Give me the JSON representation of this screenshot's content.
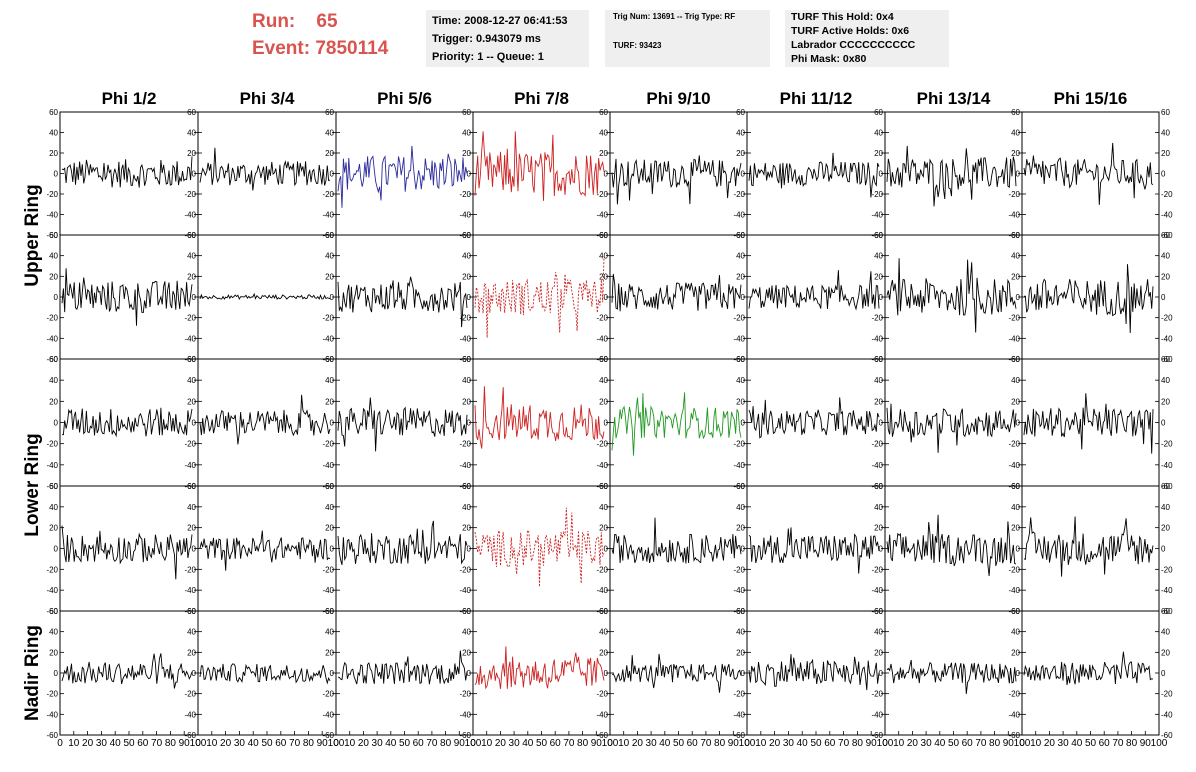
{
  "header": {
    "run_label": "Run:",
    "run_value": "65",
    "event_label": "Event:",
    "event_value": "7850114"
  },
  "info_box_1": {
    "time": "Time: 2008-12-27 06:41:53",
    "trigger": "Trigger: 0.943079 ms",
    "priority": "Priority: 1 -- Queue: 1"
  },
  "info_box_2": {
    "trig": "Trig Num: 13691 -- Trig Type: RF",
    "turf": "TURF: 93423"
  },
  "info_box_3": {
    "hold": "TURF This Hold: 0x4",
    "active": "TURF Active Holds: 0x6",
    "labrador": "Labrador CCCCCCCCCC",
    "phimask": "Phi Mask: 0x80"
  },
  "colors": {
    "default": "#000000",
    "blue": "#2b2b9e",
    "red": "#cc2222",
    "green": "#229922"
  },
  "chart_data": {
    "type": "line",
    "columns": [
      "Phi 1/2",
      "Phi 3/4",
      "Phi 5/6",
      "Phi 7/8",
      "Phi 9/10",
      "Phi 11/12",
      "Phi 13/14",
      "Phi 15/16"
    ],
    "ring_labels": [
      "Upper Ring",
      "Lower Ring",
      "Nadir Ring"
    ],
    "ring_spans": [
      [
        0,
        1
      ],
      [
        2,
        3
      ],
      [
        4,
        4
      ]
    ],
    "ylim": [
      -60,
      60
    ],
    "yticks": [
      60,
      40,
      20,
      0,
      -20,
      -40,
      -60
    ],
    "xlim": [
      0,
      100
    ],
    "xticks": [
      "0",
      "10",
      "20",
      "30",
      "40",
      "50",
      "60",
      "70",
      "80",
      "90",
      "100"
    ],
    "xticks_last": [
      "0",
      "10",
      "20",
      "30",
      "40",
      "50",
      "60",
      "70",
      "80",
      "90",
      "100"
    ],
    "panels": [
      [
        {
          "amp": 14,
          "color": "default"
        },
        {
          "amp": 12,
          "color": "default"
        },
        {
          "amp": 18,
          "color": "blue"
        },
        {
          "amp": 22,
          "color": "red"
        },
        {
          "amp": 14,
          "color": "default"
        },
        {
          "amp": 12,
          "color": "default"
        },
        {
          "amp": 16,
          "color": "default"
        },
        {
          "amp": 14,
          "color": "default"
        }
      ],
      [
        {
          "amp": 16,
          "color": "default"
        },
        {
          "amp": 2,
          "color": "default"
        },
        {
          "amp": 15,
          "color": "default"
        },
        {
          "amp": 18,
          "color": "red",
          "dashed": true
        },
        {
          "amp": 14,
          "color": "default"
        },
        {
          "amp": 12,
          "color": "default"
        },
        {
          "amp": 18,
          "color": "default"
        },
        {
          "amp": 18,
          "color": "default"
        }
      ],
      [
        {
          "amp": 14,
          "color": "default"
        },
        {
          "amp": 12,
          "color": "default"
        },
        {
          "amp": 14,
          "color": "default"
        },
        {
          "amp": 18,
          "color": "red"
        },
        {
          "amp": 15,
          "color": "green"
        },
        {
          "amp": 12,
          "color": "default"
        },
        {
          "amp": 14,
          "color": "default"
        },
        {
          "amp": 14,
          "color": "default"
        }
      ],
      [
        {
          "amp": 14,
          "color": "default"
        },
        {
          "amp": 11,
          "color": "default"
        },
        {
          "amp": 15,
          "color": "default"
        },
        {
          "amp": 18,
          "color": "red",
          "dashed": true
        },
        {
          "amp": 14,
          "color": "default"
        },
        {
          "amp": 14,
          "color": "default"
        },
        {
          "amp": 15,
          "color": "default"
        },
        {
          "amp": 16,
          "color": "default"
        }
      ],
      [
        {
          "amp": 11,
          "color": "default"
        },
        {
          "amp": 9,
          "color": "default"
        },
        {
          "amp": 11,
          "color": "default"
        },
        {
          "amp": 16,
          "color": "red"
        },
        {
          "amp": 9,
          "color": "default"
        },
        {
          "amp": 13,
          "color": "default"
        },
        {
          "amp": 10,
          "color": "default"
        },
        {
          "amp": 11,
          "color": "default"
        }
      ]
    ]
  }
}
